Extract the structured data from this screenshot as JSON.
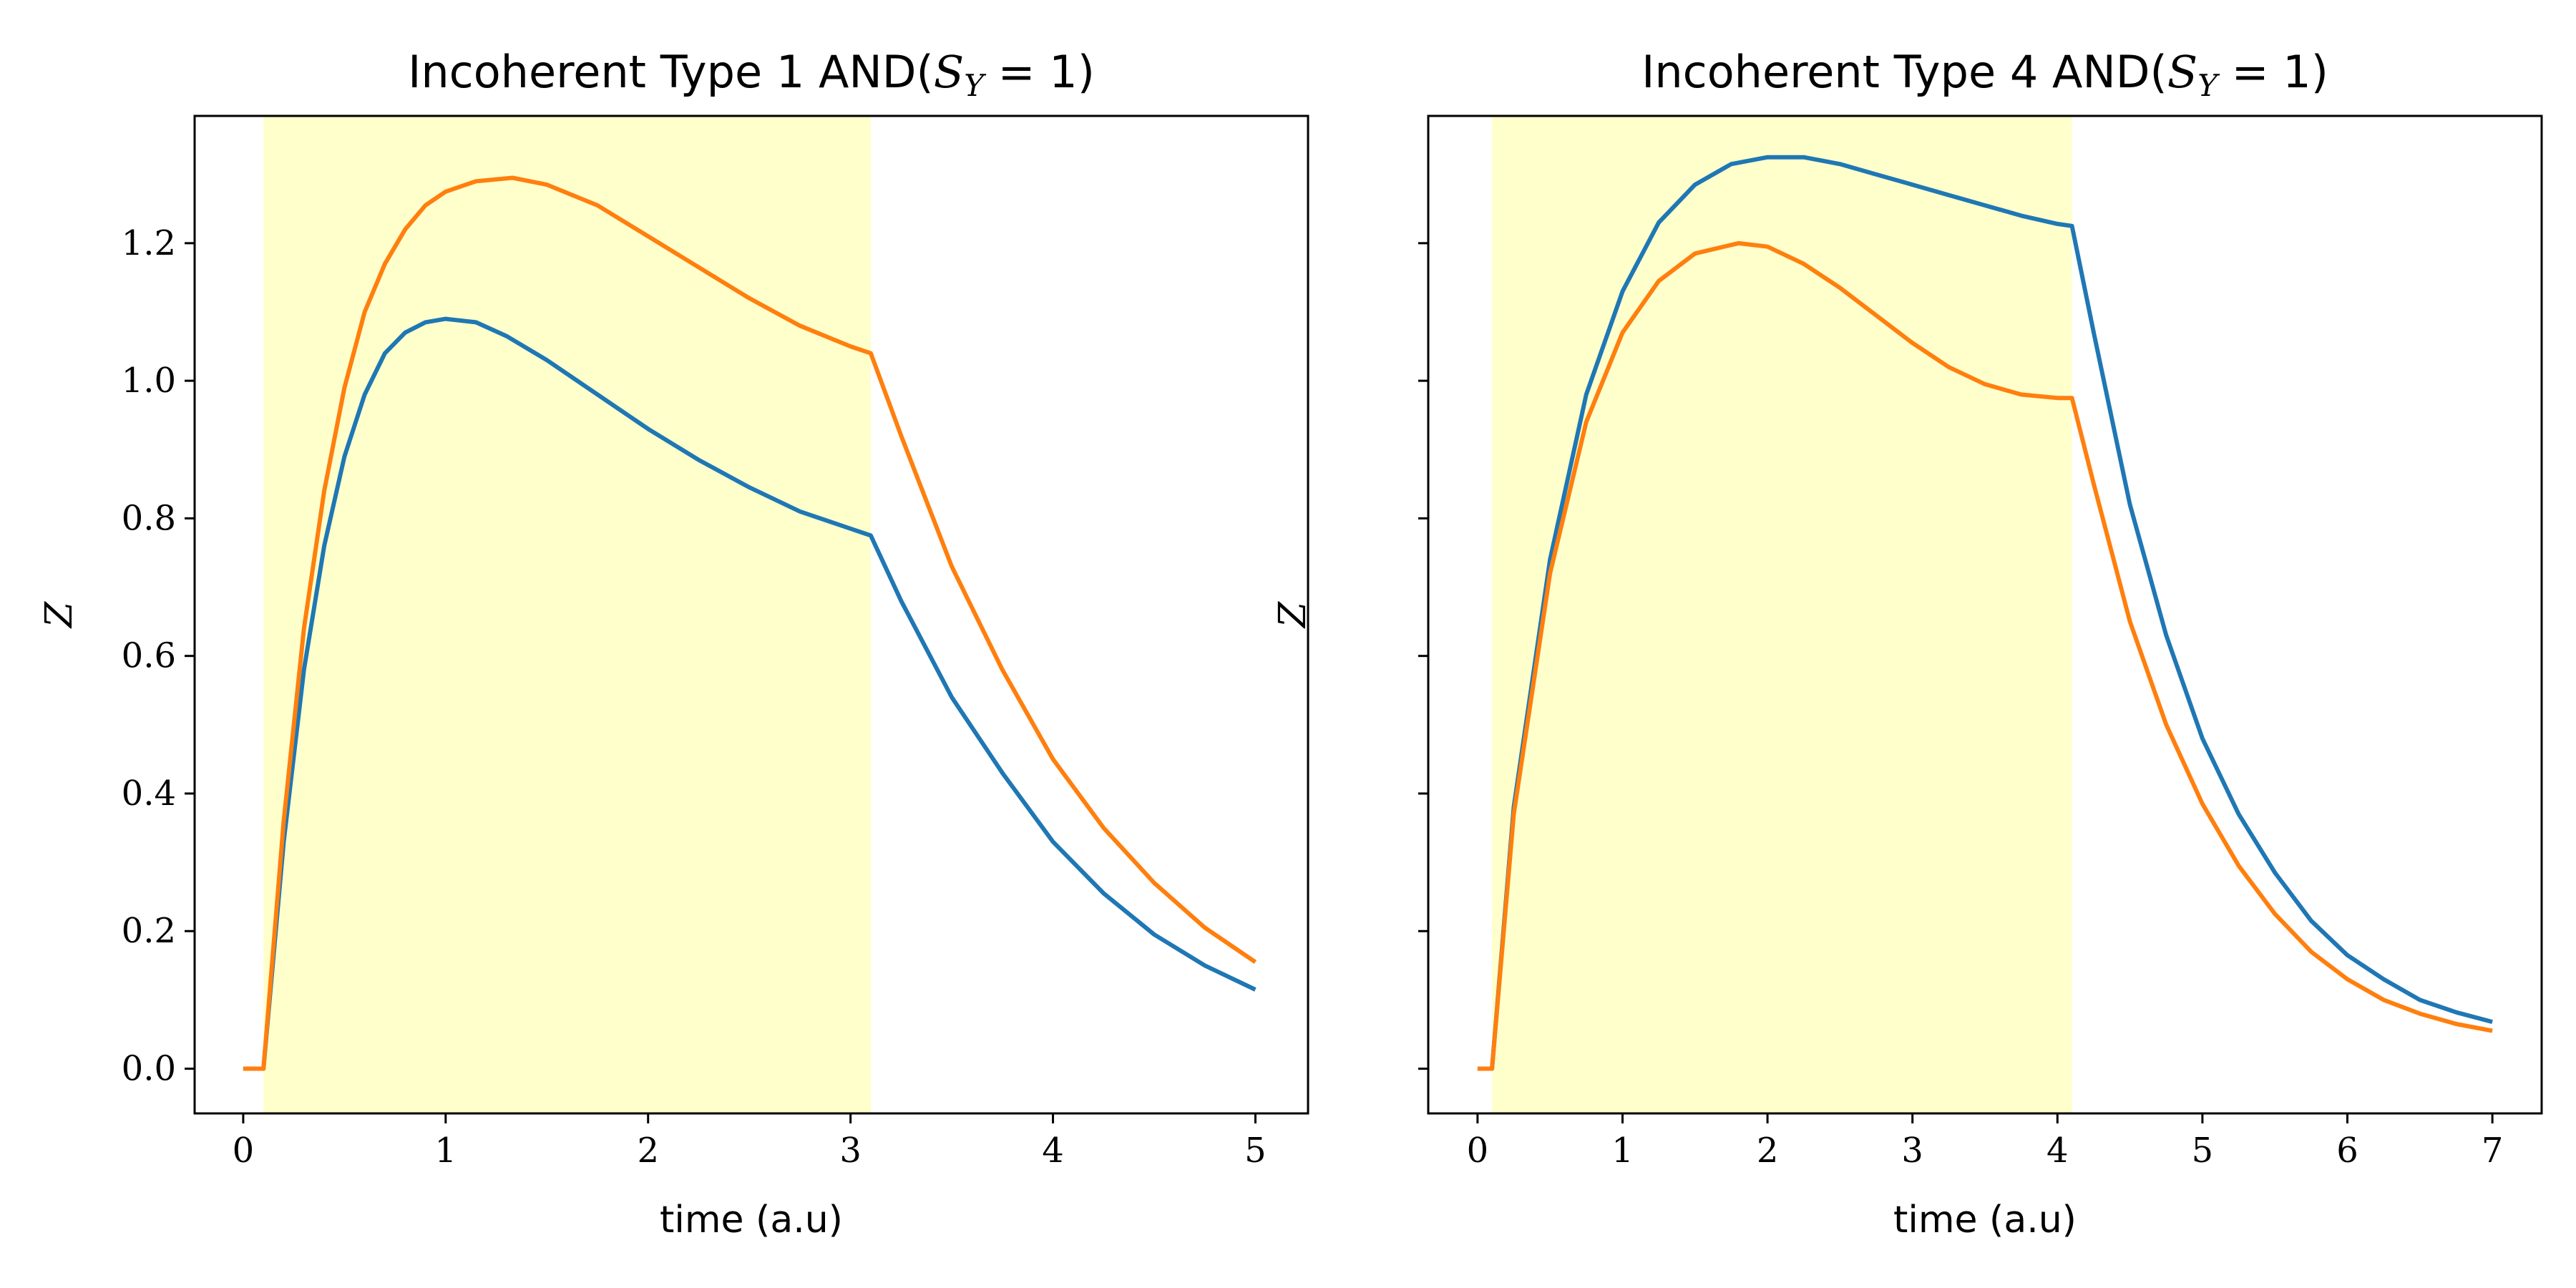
{
  "chart_data": [
    {
      "type": "line",
      "title": {
        "text": "Incoherent Type 1 AND(",
        "math": "S",
        "math_sub": "Y",
        "math_rest": " = 1)"
      },
      "xlabel": "time (a.u)",
      "ylabel": "Z",
      "xlim": [
        -0.24,
        5.26
      ],
      "ylim": [
        -0.065,
        1.385
      ],
      "xticks": [
        0,
        1,
        2,
        3,
        4,
        5
      ],
      "yticks": [
        0.0,
        0.2,
        0.4,
        0.6,
        0.8,
        1.0,
        1.2
      ],
      "xtick_labels": [
        "0",
        "1",
        "2",
        "3",
        "4",
        "5"
      ],
      "ytick_labels": [
        "0.0",
        "0.2",
        "0.4",
        "0.6",
        "0.8",
        "1.0",
        "1.2"
      ],
      "shaded_interval": {
        "x0": 0.1,
        "x1": 3.1,
        "color": "#ffffcc"
      },
      "grid": false,
      "series": [
        {
          "color": "#1f77b4",
          "x": [
            0,
            0.1,
            0.2,
            0.3,
            0.4,
            0.5,
            0.6,
            0.7,
            0.8,
            0.9,
            1.0,
            1.15,
            1.3,
            1.5,
            1.75,
            2.0,
            2.25,
            2.5,
            2.75,
            3.0,
            3.1,
            3.25,
            3.5,
            3.75,
            4.0,
            4.25,
            4.5,
            4.75,
            5.0
          ],
          "y": [
            0.0,
            0.0,
            0.33,
            0.58,
            0.76,
            0.89,
            0.98,
            1.04,
            1.07,
            1.085,
            1.09,
            1.085,
            1.065,
            1.03,
            0.98,
            0.93,
            0.885,
            0.845,
            0.81,
            0.785,
            0.775,
            0.68,
            0.54,
            0.43,
            0.33,
            0.255,
            0.195,
            0.15,
            0.115
          ]
        },
        {
          "color": "#ff7f0e",
          "x": [
            0,
            0.1,
            0.2,
            0.3,
            0.4,
            0.5,
            0.6,
            0.7,
            0.8,
            0.9,
            1.0,
            1.15,
            1.33,
            1.5,
            1.75,
            2.0,
            2.25,
            2.5,
            2.75,
            3.0,
            3.1,
            3.25,
            3.5,
            3.75,
            4.0,
            4.25,
            4.5,
            4.75,
            5.0
          ],
          "y": [
            0.0,
            0.0,
            0.36,
            0.64,
            0.84,
            0.99,
            1.1,
            1.17,
            1.22,
            1.255,
            1.275,
            1.29,
            1.295,
            1.285,
            1.255,
            1.21,
            1.165,
            1.12,
            1.08,
            1.05,
            1.04,
            0.92,
            0.73,
            0.58,
            0.45,
            0.35,
            0.27,
            0.205,
            0.155
          ]
        }
      ]
    },
    {
      "type": "line",
      "title": {
        "text": "Incoherent Type 4 AND(",
        "math": "S",
        "math_sub": "Y",
        "math_rest": " = 1)"
      },
      "xlabel": "time (a.u)",
      "ylabel": "Z",
      "xlim": [
        -0.34,
        7.34
      ],
      "ylim": [
        -0.065,
        1.385
      ],
      "xticks": [
        0,
        1,
        2,
        3,
        4,
        5,
        6,
        7
      ],
      "yticks": [
        0.0,
        0.2,
        0.4,
        0.6,
        0.8,
        1.0,
        1.2
      ],
      "xtick_labels": [
        "0",
        "1",
        "2",
        "3",
        "4",
        "5",
        "6",
        "7"
      ],
      "ytick_labels": [],
      "shaded_interval": {
        "x0": 0.1,
        "x1": 4.1,
        "color": "#ffffcc"
      },
      "grid": false,
      "series": [
        {
          "color": "#1f77b4",
          "x": [
            0,
            0.1,
            0.25,
            0.5,
            0.75,
            1.0,
            1.25,
            1.5,
            1.75,
            2.0,
            2.25,
            2.5,
            2.75,
            3.0,
            3.25,
            3.5,
            3.75,
            4.0,
            4.1,
            4.25,
            4.5,
            4.75,
            5.0,
            5.25,
            5.5,
            5.75,
            6.0,
            6.25,
            6.5,
            6.75,
            7.0
          ],
          "y": [
            0.0,
            0.0,
            0.38,
            0.74,
            0.98,
            1.13,
            1.23,
            1.285,
            1.315,
            1.325,
            1.325,
            1.315,
            1.3,
            1.285,
            1.27,
            1.255,
            1.24,
            1.228,
            1.225,
            1.07,
            0.82,
            0.63,
            0.48,
            0.37,
            0.285,
            0.215,
            0.165,
            0.13,
            0.1,
            0.082,
            0.068
          ]
        },
        {
          "color": "#ff7f0e",
          "x": [
            0,
            0.1,
            0.25,
            0.5,
            0.75,
            1.0,
            1.25,
            1.5,
            1.8,
            2.0,
            2.25,
            2.5,
            2.75,
            3.0,
            3.25,
            3.5,
            3.75,
            4.0,
            4.1,
            4.25,
            4.5,
            4.75,
            5.0,
            5.25,
            5.5,
            5.75,
            6.0,
            6.25,
            6.5,
            6.75,
            7.0
          ],
          "y": [
            0.0,
            0.0,
            0.37,
            0.72,
            0.94,
            1.07,
            1.145,
            1.185,
            1.2,
            1.195,
            1.17,
            1.135,
            1.095,
            1.055,
            1.02,
            0.995,
            0.98,
            0.975,
            0.975,
            0.85,
            0.65,
            0.5,
            0.385,
            0.295,
            0.225,
            0.17,
            0.13,
            0.1,
            0.08,
            0.065,
            0.055
          ]
        }
      ]
    }
  ]
}
